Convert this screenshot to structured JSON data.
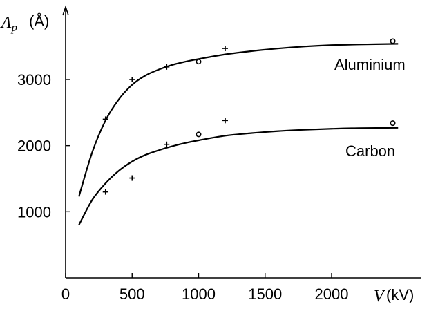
{
  "chart_data": {
    "type": "line",
    "xlabel": {
      "symbol": "V",
      "unit": "(kV)"
    },
    "ylabel": {
      "symbol": "Λ",
      "subscript": "p",
      "unit": "(Å)"
    },
    "xlim": [
      0,
      2650
    ],
    "ylim": [
      0,
      3800
    ],
    "x_ticks": [
      0,
      500,
      1000,
      1500,
      2000
    ],
    "y_ticks": [
      1000,
      2000,
      3000
    ],
    "x_tick_labels": [
      "0",
      "500",
      "1000",
      "1500",
      "2000"
    ],
    "y_tick_labels": [
      "1000",
      "2000",
      "3000"
    ],
    "grid": false,
    "series": [
      {
        "name": "Aluminium",
        "curve_x": [
          100,
          200,
          300,
          400,
          500,
          600,
          700,
          800,
          900,
          1000,
          1200,
          1400,
          1600,
          1800,
          2000,
          2200,
          2500
        ],
        "curve_y": [
          1230,
          1900,
          2380,
          2700,
          2920,
          3060,
          3150,
          3220,
          3270,
          3310,
          3380,
          3430,
          3470,
          3500,
          3520,
          3530,
          3540
        ],
        "points_plus": [
          [
            300,
            2400
          ],
          [
            500,
            3000
          ],
          [
            760,
            3190
          ],
          [
            1200,
            3470
          ]
        ],
        "points_circle": [
          [
            1000,
            3270
          ],
          [
            2460,
            3580
          ]
        ]
      },
      {
        "name": "Carbon",
        "curve_x": [
          100,
          200,
          300,
          400,
          500,
          600,
          700,
          800,
          900,
          1000,
          1200,
          1400,
          1600,
          1800,
          2000,
          2200,
          2500
        ],
        "curve_y": [
          800,
          1180,
          1430,
          1620,
          1760,
          1860,
          1930,
          1990,
          2040,
          2080,
          2150,
          2190,
          2220,
          2240,
          2255,
          2265,
          2270
        ],
        "points_plus": [
          [
            300,
            1300
          ],
          [
            500,
            1510
          ],
          [
            760,
            2020
          ],
          [
            1200,
            2380
          ]
        ],
        "points_circle": [
          [
            1000,
            2170
          ],
          [
            2460,
            2340
          ]
        ]
      }
    ]
  }
}
